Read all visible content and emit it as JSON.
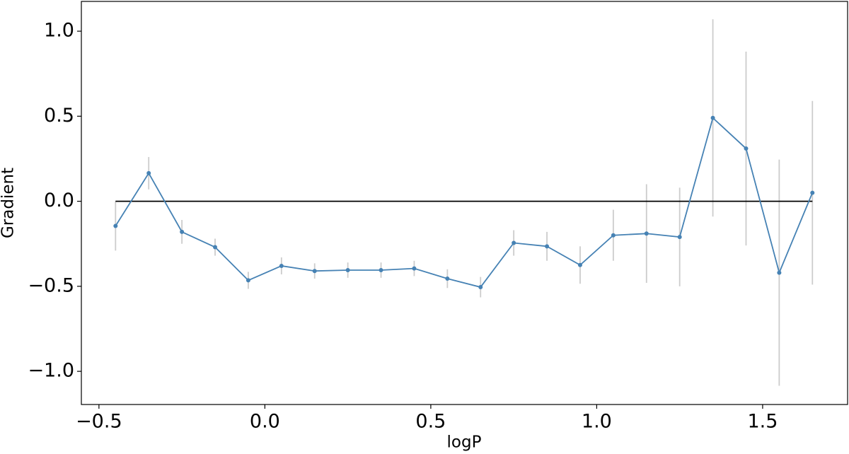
{
  "chart_data": {
    "type": "line",
    "xlabel": "logP",
    "ylabel": "Gradient",
    "x": [
      -0.45,
      -0.35,
      -0.25,
      -0.15,
      -0.05,
      0.05,
      0.15,
      0.25,
      0.35,
      0.45,
      0.55,
      0.65,
      0.75,
      0.85,
      0.95,
      1.05,
      1.15,
      1.25,
      1.35,
      1.45,
      1.55,
      1.65
    ],
    "series": [
      {
        "color": "#4682b4",
        "error_color": "#cccccc",
        "values": [
          -0.145,
          0.165,
          -0.18,
          -0.27,
          -0.465,
          -0.38,
          -0.41,
          -0.405,
          -0.405,
          -0.395,
          -0.455,
          -0.505,
          -0.245,
          -0.265,
          -0.375,
          -0.2,
          -0.19,
          -0.21,
          0.49,
          0.31,
          -0.42,
          0.05
        ],
        "errors": [
          0.145,
          0.095,
          0.07,
          0.05,
          0.05,
          0.05,
          0.045,
          0.045,
          0.045,
          0.045,
          0.055,
          0.06,
          0.075,
          0.085,
          0.11,
          0.15,
          0.29,
          0.29,
          0.58,
          0.57,
          0.665,
          0.54
        ]
      }
    ],
    "reference_line": {
      "y": 0,
      "x": [
        -0.45,
        1.65
      ],
      "color": "#000000"
    },
    "xlim": [
      -0.553,
      1.756
    ],
    "ylim": [
      -1.195,
      1.175
    ],
    "xticks": [
      {
        "value": -0.5,
        "label": "−0.5"
      },
      {
        "value": 0,
        "label": "0.0"
      },
      0.5,
      {
        "value": 1,
        "label": "1.0"
      },
      1.5
    ],
    "yticks": [
      {
        "value": -1,
        "label": "−1.0"
      },
      {
        "value": -0.5,
        "label": "−0.5"
      },
      {
        "value": 0,
        "label": "0.0"
      },
      0.5,
      {
        "value": 1,
        "label": "1.0"
      }
    ]
  }
}
